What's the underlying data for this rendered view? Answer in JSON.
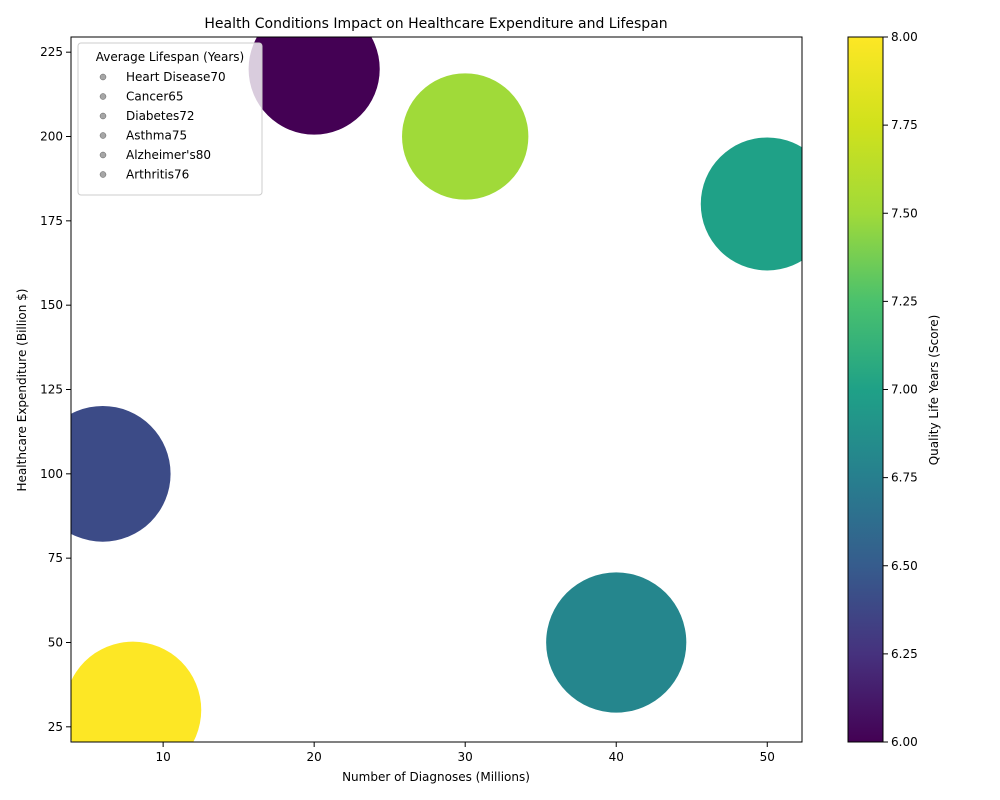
{
  "chart_data": {
    "type": "scatter",
    "title": "Health Conditions Impact on Healthcare Expenditure and Lifespan",
    "xlabel": "Number of Diagnoses (Millions)",
    "ylabel": "Healthcare Expenditure (Billion $)",
    "xlim": [
      3.9,
      52.3
    ],
    "ylim": [
      20.5,
      229.5
    ],
    "xticks": [
      10,
      20,
      30,
      40,
      50
    ],
    "yticks": [
      25,
      50,
      75,
      100,
      125,
      150,
      175,
      200,
      225
    ],
    "colorbar": {
      "label": "Quality Life Years (Score)",
      "range": [
        6.0,
        8.0
      ],
      "ticks": [
        "6.00",
        "6.25",
        "6.50",
        "6.75",
        "7.00",
        "7.25",
        "7.50",
        "7.75",
        "8.00"
      ],
      "colormap": "viridis"
    },
    "legend": {
      "title": "Average Lifespan (Years)",
      "placement": "upper-left",
      "entries": [
        " Heart Disease70",
        " Cancer65",
        " Diabetes72",
        " Asthma75",
        " Alzheimer's80",
        " Arthritis76"
      ]
    },
    "points": [
      {
        "condition": "Heart Disease",
        "diagnoses": 20,
        "expenditure": 220,
        "lifespan": 70,
        "quality": 6.0
      },
      {
        "condition": "Cancer",
        "diagnoses": 30,
        "expenditure": 200,
        "lifespan": 65,
        "quality": 7.5
      },
      {
        "condition": "Diabetes",
        "diagnoses": 50,
        "expenditure": 180,
        "lifespan": 72,
        "quality": 7.0
      },
      {
        "condition": "Asthma",
        "diagnoses": 6,
        "expenditure": 100,
        "lifespan": 75,
        "quality": 6.4
      },
      {
        "condition": "Alzheimer's",
        "diagnoses": 40,
        "expenditure": 50,
        "lifespan": 80,
        "quality": 6.8
      },
      {
        "condition": "Arthritis",
        "diagnoses": 8,
        "expenditure": 30,
        "lifespan": 76,
        "quality": 8.0
      }
    ]
  }
}
